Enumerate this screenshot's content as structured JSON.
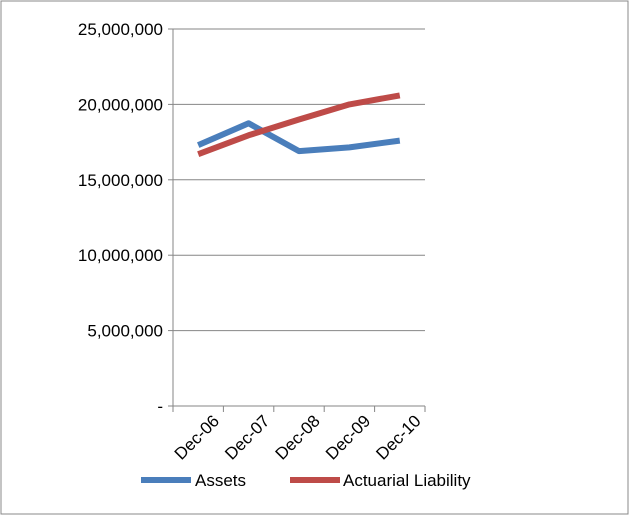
{
  "chart_data": {
    "type": "line",
    "title": "",
    "xlabel": "",
    "ylabel": "",
    "categories": [
      "Dec-06",
      "Dec-07",
      "Dec-08",
      "Dec-09",
      "Dec-10"
    ],
    "ylim": [
      0,
      25000000
    ],
    "yticks": [
      0,
      5000000,
      10000000,
      15000000,
      20000000,
      25000000
    ],
    "ytick_labels": [
      "-",
      "5,000,000",
      "10,000,000",
      "15,000,000",
      "20,000,000",
      "25,000,000"
    ],
    "grid": true,
    "legend_position": "bottom",
    "series": [
      {
        "name": "Assets",
        "color": "#4a7ebb",
        "values": [
          17300000,
          18750000,
          16900000,
          17150000,
          17600000
        ]
      },
      {
        "name": "Actuarial Liability",
        "color": "#be4b48",
        "values": [
          16700000,
          17950000,
          19000000,
          20000000,
          20600000
        ]
      }
    ]
  }
}
